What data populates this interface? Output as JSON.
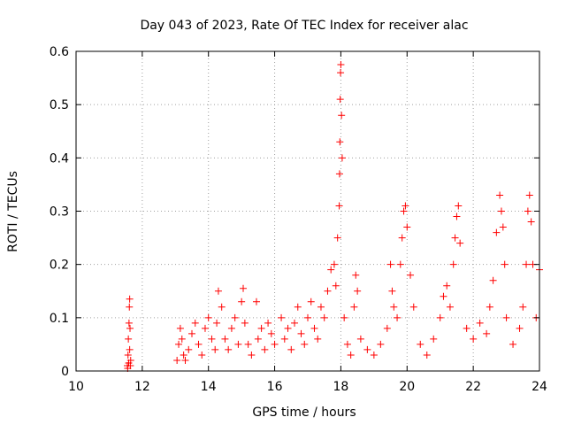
{
  "chart_data": {
    "type": "scatter",
    "title": "Day 043 of 2023, Rate Of TEC Index for receiver alac",
    "xlabel": "GPS time / hours",
    "ylabel": "ROTI / TECUs",
    "xlim": [
      10,
      24
    ],
    "ylim": [
      0,
      0.6
    ],
    "xticks": [
      "10",
      "12",
      "14",
      "16",
      "18",
      "20",
      "22",
      "24"
    ],
    "yticks": [
      "0",
      "0.1",
      "0.2",
      "0.3",
      "0.4",
      "0.5",
      "0.6"
    ],
    "grid": true,
    "marker": "plus",
    "color": "#ff0000",
    "series": [
      {
        "x": [
          11.55,
          11.57,
          11.58,
          11.6,
          11.61,
          11.62,
          11.63,
          11.65,
          11.56,
          11.59,
          11.62,
          11.64,
          13.05,
          13.1,
          13.15,
          13.2,
          13.25,
          13.3,
          13.4,
          13.5,
          13.6,
          13.7,
          13.8,
          13.9,
          14.0,
          14.1,
          14.2,
          14.25,
          14.3,
          14.4,
          14.5,
          14.6,
          14.7,
          14.8,
          14.9,
          15.0,
          15.05,
          15.1,
          15.2,
          15.3,
          15.45,
          15.5,
          15.6,
          15.7,
          15.8,
          15.9,
          16.0,
          16.2,
          16.3,
          16.4,
          16.5,
          16.6,
          16.7,
          16.8,
          16.9,
          17.0,
          17.1,
          17.2,
          17.3,
          17.4,
          17.5,
          17.6,
          17.7,
          17.8,
          17.85,
          17.9,
          17.95,
          17.96,
          17.97,
          17.98,
          17.99,
          18.0,
          18.02,
          18.04,
          18.1,
          18.2,
          18.3,
          18.4,
          18.45,
          18.5,
          18.6,
          18.8,
          19.0,
          19.2,
          19.4,
          19.5,
          19.55,
          19.6,
          19.7,
          19.8,
          19.85,
          19.9,
          19.95,
          20.0,
          20.1,
          20.2,
          20.4,
          20.6,
          20.8,
          21.0,
          21.1,
          21.2,
          21.3,
          21.4,
          21.45,
          21.5,
          21.55,
          21.6,
          21.8,
          22.0,
          22.2,
          22.4,
          22.5,
          22.6,
          22.7,
          22.8,
          22.85,
          22.9,
          22.95,
          23.0,
          23.2,
          23.4,
          23.5,
          23.6,
          23.65,
          23.7,
          23.75,
          23.8,
          23.9,
          24.0
        ],
        "y": [
          0.01,
          0.03,
          0.06,
          0.09,
          0.12,
          0.135,
          0.08,
          0.02,
          0.005,
          0.015,
          0.04,
          0.01,
          0.02,
          0.05,
          0.08,
          0.06,
          0.03,
          0.02,
          0.04,
          0.07,
          0.09,
          0.05,
          0.03,
          0.08,
          0.1,
          0.06,
          0.04,
          0.09,
          0.15,
          0.12,
          0.06,
          0.04,
          0.08,
          0.1,
          0.05,
          0.13,
          0.155,
          0.09,
          0.05,
          0.03,
          0.13,
          0.06,
          0.08,
          0.04,
          0.09,
          0.07,
          0.05,
          0.1,
          0.06,
          0.08,
          0.04,
          0.09,
          0.12,
          0.07,
          0.05,
          0.1,
          0.13,
          0.08,
          0.06,
          0.12,
          0.1,
          0.15,
          0.19,
          0.2,
          0.16,
          0.25,
          0.31,
          0.37,
          0.43,
          0.51,
          0.56,
          0.575,
          0.48,
          0.4,
          0.1,
          0.05,
          0.03,
          0.12,
          0.18,
          0.15,
          0.06,
          0.04,
          0.03,
          0.05,
          0.08,
          0.2,
          0.15,
          0.12,
          0.1,
          0.2,
          0.25,
          0.3,
          0.31,
          0.27,
          0.18,
          0.12,
          0.05,
          0.03,
          0.06,
          0.1,
          0.14,
          0.16,
          0.12,
          0.2,
          0.25,
          0.29,
          0.31,
          0.24,
          0.08,
          0.06,
          0.09,
          0.07,
          0.12,
          0.17,
          0.26,
          0.33,
          0.3,
          0.27,
          0.2,
          0.1,
          0.05,
          0.08,
          0.12,
          0.2,
          0.3,
          0.33,
          0.28,
          0.2,
          0.1,
          0.19
        ]
      }
    ]
  }
}
